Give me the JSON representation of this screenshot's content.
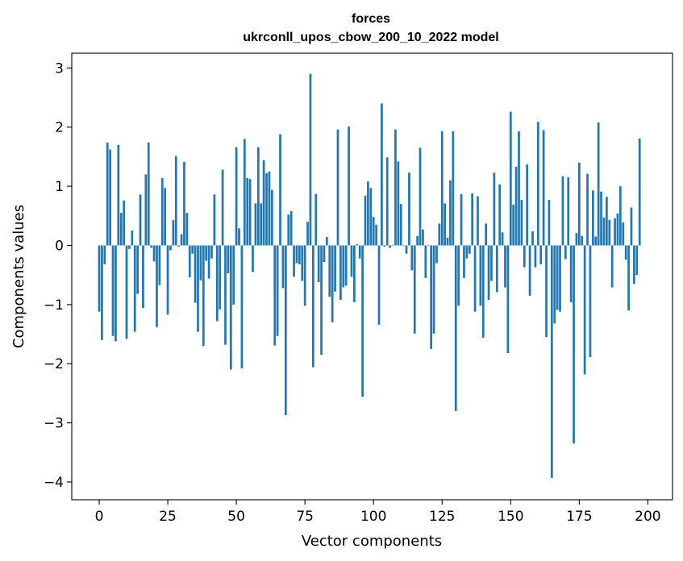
{
  "chart_data": {
    "type": "bar",
    "title_line1": "forces",
    "title_line2": "ukrconll_upos_cbow_200_10_2022 model",
    "xlabel": "Vector components",
    "ylabel": "Components values",
    "xlim": [
      -10,
      209
    ],
    "ylim": [
      -4.3,
      3.25
    ],
    "x_ticks": [
      0,
      25,
      50,
      75,
      100,
      125,
      150,
      175,
      200
    ],
    "x_tick_labels": [
      "0",
      "25",
      "50",
      "75",
      "100",
      "125",
      "150",
      "175",
      "200"
    ],
    "y_ticks": [
      -4,
      -3,
      -2,
      -1,
      0,
      1,
      2,
      3
    ],
    "y_tick_labels": [
      "−4",
      "−3",
      "−2",
      "−1",
      "0",
      "1",
      "2",
      "3"
    ],
    "bar_color": "#1f77b4",
    "grid": false,
    "values": [
      -1.12,
      -1.6,
      -0.32,
      1.74,
      1.62,
      -1.53,
      -1.62,
      1.7,
      0.55,
      0.76,
      -1.58,
      -0.06,
      0.25,
      -1.46,
      -0.82,
      0.86,
      -1.06,
      1.2,
      1.74,
      -0.04,
      -0.27,
      -1.38,
      -0.67,
      1.14,
      0.97,
      -1.17,
      -0.08,
      0.43,
      1.51,
      -0.02,
      0.19,
      1.41,
      0.55,
      -0.54,
      -0.14,
      -0.97,
      -1.46,
      -0.59,
      -1.7,
      -0.26,
      -0.56,
      -0.22,
      0.86,
      -1.28,
      -1.08,
      1.28,
      -1.68,
      -0.47,
      -2.1,
      -1.0,
      1.66,
      0.29,
      -2.08,
      1.8,
      1.14,
      1.12,
      -0.45,
      0.71,
      1.66,
      0.71,
      1.44,
      1.22,
      1.25,
      0.94,
      -1.69,
      -1.53,
      1.88,
      -0.72,
      -2.87,
      0.52,
      0.58,
      -0.53,
      -0.3,
      -0.32,
      -0.6,
      -1.02,
      0.4,
      2.9,
      -2.06,
      0.87,
      -0.62,
      -1.85,
      -0.28,
      0.14,
      -0.87,
      -1.3,
      -0.78,
      1.96,
      -0.92,
      -0.71,
      -0.68,
      2.01,
      -0.53,
      -0.96,
      0.02,
      -0.22,
      -2.56,
      0.84,
      1.08,
      0.97,
      0.48,
      0.35,
      -1.34,
      2.4,
      -0.02,
      1.49,
      -0.04,
      0.01,
      1.96,
      1.42,
      0.7,
      -0.01,
      -0.14,
      1.23,
      -0.42,
      -1.49,
      0.16,
      1.65,
      0.27,
      -0.55,
      0.01,
      -1.75,
      -1.49,
      -0.3,
      0.37,
      1.93,
      0.71,
      0.13,
      1.1,
      1.93,
      -2.8,
      -1.02,
      0.87,
      -0.55,
      -0.22,
      -0.14,
      0.88,
      -1.12,
      0.83,
      -1.02,
      -1.56,
      0.37,
      -0.92,
      -0.6,
      1.23,
      -0.79,
      1.03,
      0.22,
      -0.71,
      -1.82,
      2.26,
      0.69,
      1.33,
      1.93,
      0.77,
      -0.37,
      1.37,
      -0.85,
      0.24,
      -0.37,
      2.09,
      -0.32,
      1.95,
      -1.55,
      0.77,
      -3.93,
      -1.32,
      -1.09,
      -1.12,
      1.17,
      -0.23,
      1.15,
      -0.96,
      -3.35,
      0.21,
      1.4,
      0.16,
      -2.18,
      1.21,
      -1.89,
      0.93,
      0.15,
      2.08,
      0.91,
      0.47,
      0.82,
      0.43,
      -0.71,
      0.46,
      0.54,
      1.0,
      0.39,
      -0.24,
      -1.1,
      0.64,
      -0.65,
      -0.5,
      1.81
    ]
  }
}
